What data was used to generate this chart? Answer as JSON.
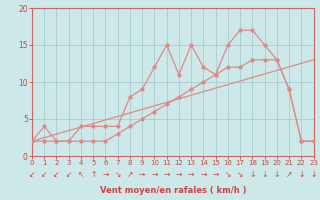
{
  "bg_color": "#cce8e8",
  "grid_color": "#aacccc",
  "line_color": "#e08888",
  "spine_color": "#cc6666",
  "tick_color": "#cc4444",
  "xlabel": "Vent moyen/en rafales ( km/h )",
  "xlim": [
    0,
    23
  ],
  "ylim": [
    0,
    20
  ],
  "yticks": [
    0,
    5,
    10,
    15,
    20
  ],
  "xticks": [
    0,
    1,
    2,
    3,
    4,
    5,
    6,
    7,
    8,
    9,
    10,
    11,
    12,
    13,
    14,
    15,
    16,
    17,
    18,
    19,
    20,
    21,
    22,
    23
  ],
  "line1_x": [
    0,
    1,
    2,
    3,
    4,
    5,
    6,
    7,
    8,
    9,
    10,
    11,
    12,
    13,
    14,
    15,
    16,
    17,
    18,
    19,
    20,
    21,
    22,
    23
  ],
  "line1_y": [
    2,
    4,
    2,
    2,
    4,
    4,
    4,
    4,
    8,
    9,
    12,
    15,
    11,
    15,
    12,
    11,
    15,
    17,
    17,
    15,
    13,
    9,
    2,
    2
  ],
  "line2_x": [
    0,
    1,
    2,
    3,
    4,
    5,
    6,
    7,
    8,
    9,
    10,
    11,
    12,
    13,
    14,
    15,
    16,
    17,
    18,
    19,
    20,
    21,
    22,
    23
  ],
  "line2_y": [
    2,
    2,
    2,
    2,
    2,
    2,
    2,
    3,
    4,
    5,
    6,
    7,
    8,
    9,
    10,
    11,
    12,
    12,
    13,
    13,
    13,
    9,
    2,
    2
  ],
  "line3_x": [
    0,
    23
  ],
  "line3_y": [
    2,
    13
  ],
  "arrows": [
    "↙",
    "↙",
    "↙",
    "↙",
    "↖",
    "↑",
    "→",
    "↘",
    "↗",
    "→",
    "→",
    "→",
    "→",
    "→",
    "→",
    "→",
    "↘",
    "↘",
    "↓",
    "↓",
    "↓",
    "↗",
    "↓",
    "↓"
  ]
}
